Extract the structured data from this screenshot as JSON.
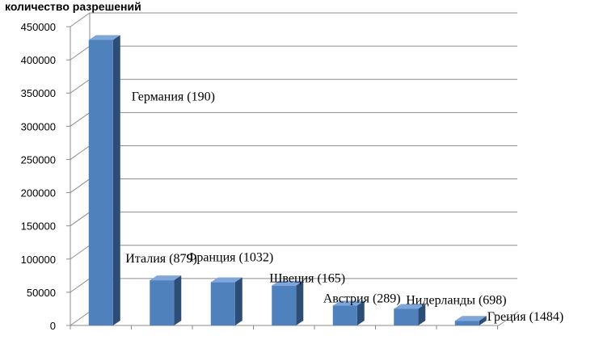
{
  "chart_data": {
    "type": "bar",
    "ylabel": "количество разрешений",
    "ylim": [
      0,
      450000
    ],
    "yticks": [
      "0",
      "50000",
      "100000",
      "150000",
      "200000",
      "250000",
      "300000",
      "350000",
      "400000",
      "450000"
    ],
    "grid": true,
    "categories": [
      "Германия (190)",
      "Италия (879)",
      "Франция (1032)",
      "Швеция (165)",
      "Австрия (289)",
      "Нидерланды (698)",
      "Греция (1484)"
    ],
    "values": [
      430000,
      68000,
      65000,
      60000,
      30000,
      25000,
      7000
    ],
    "color": "#4f81bd"
  }
}
